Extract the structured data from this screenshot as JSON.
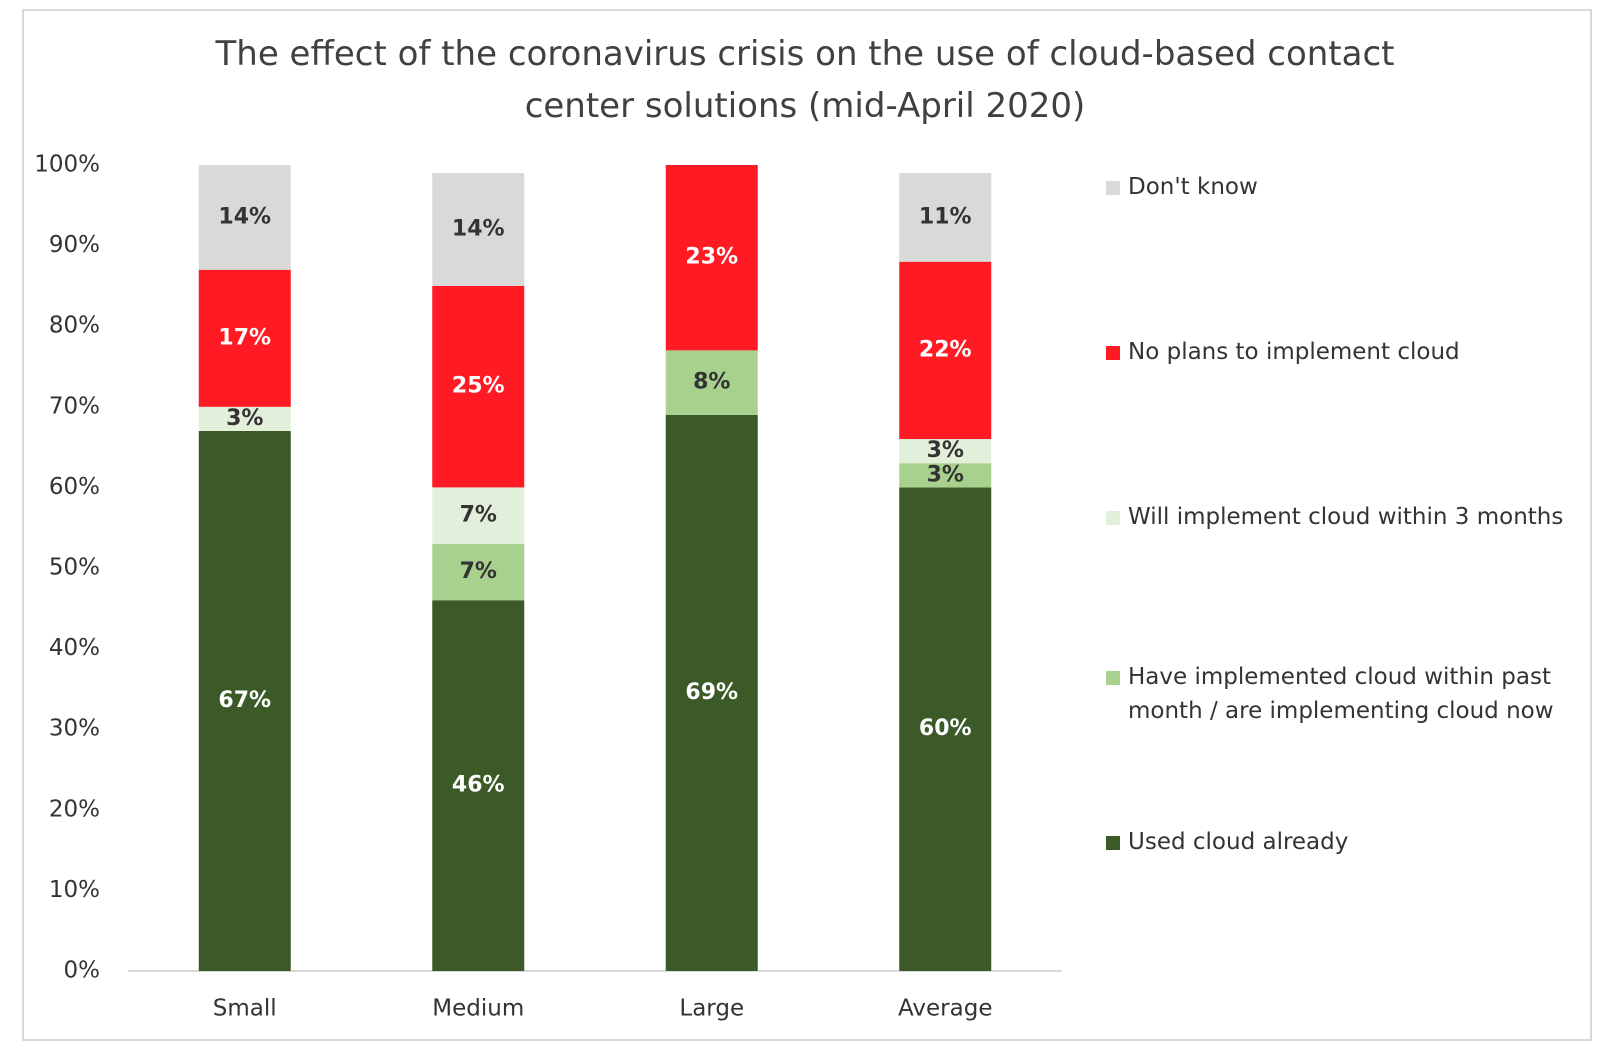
{
  "chart_data": {
    "type": "stacked_bar",
    "title": "The effect of the coronavirus crisis on the use of cloud-based contact center solutions (mid-April 2020)",
    "categories": [
      "Small",
      "Medium",
      "Large",
      "Average"
    ],
    "series": [
      {
        "name": "Used cloud already",
        "color": "#3b5a27",
        "label_color": "#ffffff",
        "values": [
          67,
          46,
          69,
          60
        ],
        "value_labels": [
          "67%",
          "46%",
          "69%",
          "60%"
        ]
      },
      {
        "name": "Have implemented cloud within past month / are implementing cloud now",
        "color": "#a9d18e",
        "label_color": "#333333",
        "values": [
          null,
          7,
          8,
          3
        ],
        "value_labels": [
          null,
          "7%",
          "8%",
          "3%"
        ]
      },
      {
        "name": "Will implement cloud within 3 months",
        "color": "#e2efda",
        "label_color": "#333333",
        "values": [
          3,
          7,
          null,
          3
        ],
        "value_labels": [
          "3%",
          "7%",
          null,
          "3%"
        ]
      },
      {
        "name": "No plans to implement cloud",
        "color": "#ff1a24",
        "label_color": "#ffffff",
        "values": [
          17,
          25,
          23,
          22
        ],
        "value_labels": [
          "17%",
          "25%",
          "23%",
          "22%"
        ]
      },
      {
        "name": "Don't know",
        "color": "#d9d9d9",
        "label_color": "#333333",
        "values": [
          14,
          14,
          null,
          11
        ],
        "value_labels": [
          "14%",
          "14%",
          null,
          "11%"
        ]
      }
    ],
    "ylim": [
      0,
      100
    ],
    "yticks": [
      {
        "value": 0,
        "label": "0%"
      },
      {
        "value": 10,
        "label": "10%"
      },
      {
        "value": 20,
        "label": "20%"
      },
      {
        "value": 30,
        "label": "30%"
      },
      {
        "value": 40,
        "label": "40%"
      },
      {
        "value": 50,
        "label": "50%"
      },
      {
        "value": 60,
        "label": "60%"
      },
      {
        "value": 70,
        "label": "70%"
      },
      {
        "value": 80,
        "label": "80%"
      },
      {
        "value": 90,
        "label": "90%"
      },
      {
        "value": 100,
        "label": "100%"
      }
    ],
    "legend": "right"
  }
}
